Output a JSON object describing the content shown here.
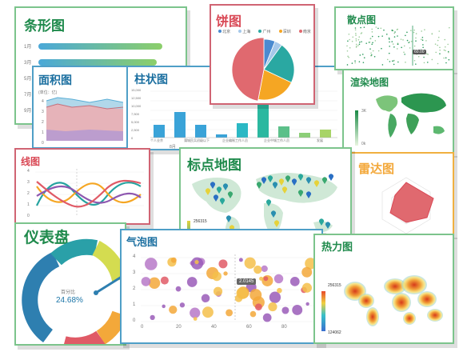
{
  "titles": {
    "bar": "条形图",
    "area": "面积图",
    "column": "柱状图",
    "pie": "饼图",
    "scatter": "散点图",
    "choropleth": "渲染地图",
    "line": "线图",
    "pinmap": "标点地图",
    "radar": "雷达图",
    "gauge": "仪表盘",
    "bubble": "气泡图",
    "heat": "热力图"
  },
  "bar_months": [
    "1月",
    "3月",
    "5月",
    "7月",
    "9月"
  ],
  "bar_values": [
    0.86,
    0.82,
    0.76,
    0.5,
    0.42
  ],
  "area_axis_title": "(单位：亿)",
  "area_y_ticks": [
    "4",
    "3",
    "2",
    "1",
    "0"
  ],
  "column_y_ticks": [
    "15,000",
    "12,500",
    "10,000",
    "7,500",
    "5,000",
    "2,500",
    "0"
  ],
  "column_categories": [
    "个人业余",
    "蒲城民兵初级以下",
    "企业编制工作人员",
    "企业中城工作人员",
    "发展"
  ],
  "column_month": "8月",
  "pie_legend": [
    {
      "label": "北京",
      "color": "#4a8ad0"
    },
    {
      "label": "上海",
      "color": "#a6c8ea"
    },
    {
      "label": "广州",
      "color": "#2aa8a2"
    },
    {
      "label": "深圳",
      "color": "#f5a623"
    },
    {
      "label": "南京",
      "color": "#e0696f"
    }
  ],
  "pie_values": [
    6,
    4,
    22,
    21,
    47
  ],
  "scatter_tip": "60.00",
  "choropleth_max": "3K",
  "choropleth_min": "0k",
  "line_y_ticks": [
    "4",
    "3",
    "2",
    "1",
    "0"
  ],
  "pinmap_max": "256315",
  "pinmap_min": "124062",
  "gauge_label": "百分比",
  "gauge_value": "24.68%",
  "gauge_fraction": 0.2468,
  "bubble_y_ticks": [
    "4",
    "3",
    "2",
    "1",
    "0"
  ],
  "bubble_x_ticks": [
    "0",
    "20",
    "40",
    "60",
    "80"
  ],
  "bubble_tooltip": "2.0145",
  "heat_max": "256315",
  "heat_min": "124062",
  "colors": {
    "green": "#27a05a",
    "blue": "#1b75a8",
    "red": "#d94855",
    "orange": "#f3a83a",
    "teal": "#1ba39c"
  }
}
